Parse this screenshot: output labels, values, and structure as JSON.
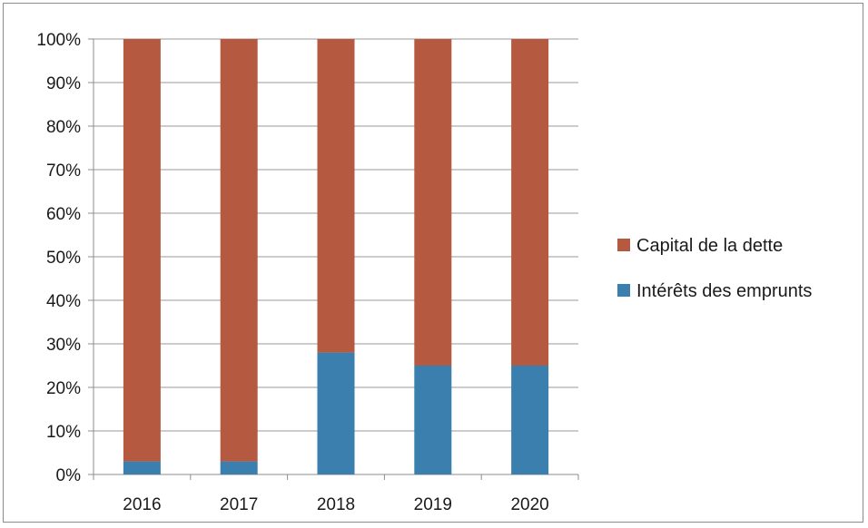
{
  "chart_data": {
    "type": "bar",
    "stacked": true,
    "percent": true,
    "categories": [
      "2016",
      "2017",
      "2018",
      "2019",
      "2020"
    ],
    "series": [
      {
        "name": "Intérêts des emprunts",
        "color": "#3b7fae",
        "values": [
          3,
          3,
          28,
          25,
          25
        ]
      },
      {
        "name": "Capital de la dette",
        "color": "#b55a40",
        "values": [
          97,
          97,
          72,
          75,
          75
        ]
      }
    ],
    "yticks": [
      "0%",
      "10%",
      "20%",
      "30%",
      "40%",
      "50%",
      "60%",
      "70%",
      "80%",
      "90%",
      "100%"
    ],
    "ylim": [
      0,
      100
    ],
    "grid": true,
    "legend_position": "right",
    "legend_order": [
      "Capital de la dette",
      "Intérêts des emprunts"
    ]
  }
}
